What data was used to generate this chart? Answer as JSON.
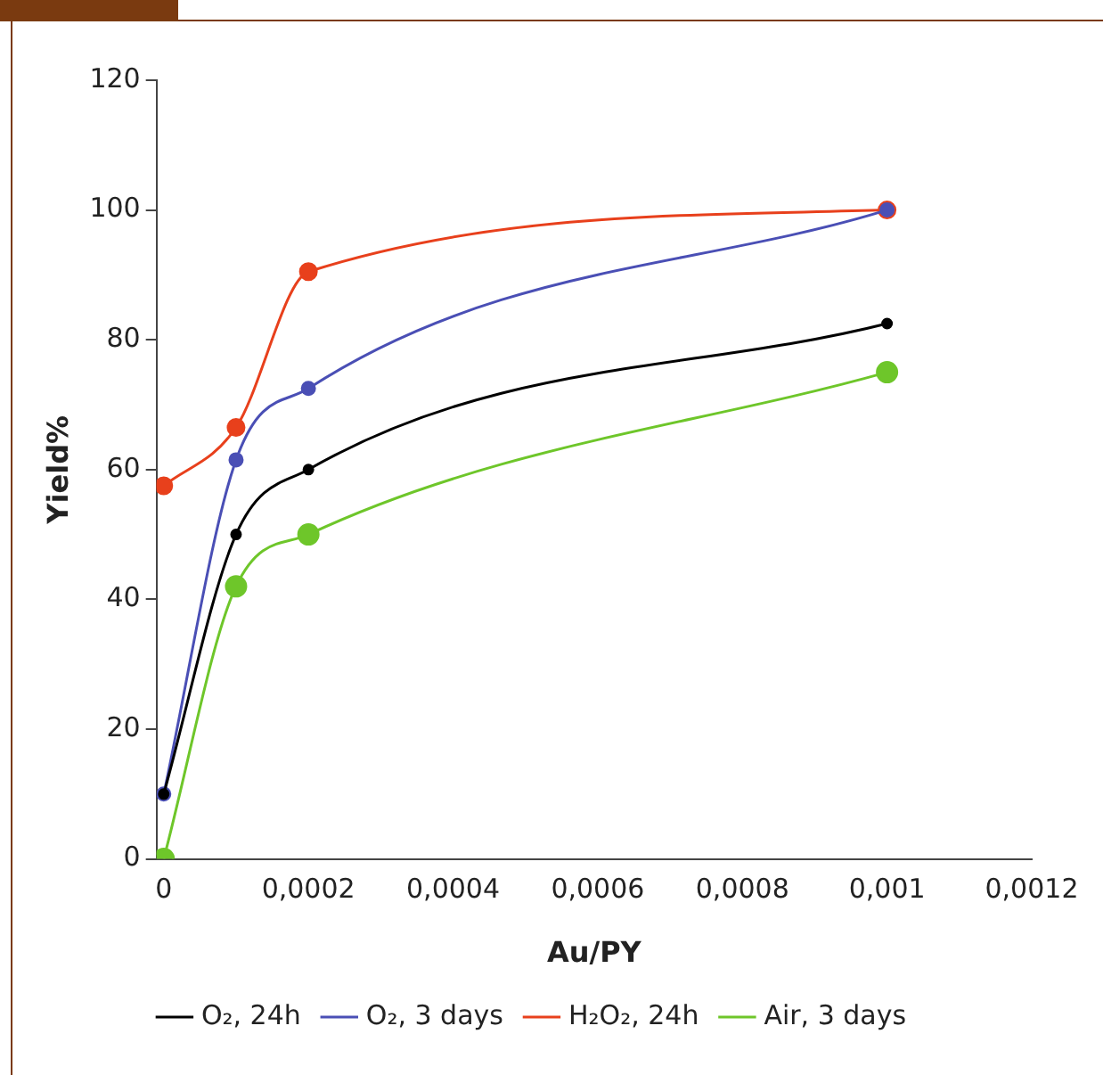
{
  "chart_data": {
    "type": "line",
    "xlabel": "Au/PY",
    "ylabel": "Yield%",
    "x": [
      0,
      0.0001,
      0.0002,
      0.001
    ],
    "series": [
      {
        "name": "O₂, 24h",
        "color": "#000000",
        "values": [
          10,
          50,
          60,
          82.5
        ]
      },
      {
        "name": "O₂, 3 days",
        "color": "#4a4fb5",
        "values": [
          10,
          61.5,
          72.5,
          100
        ]
      },
      {
        "name": "H₂O₂, 24h",
        "color": "#e8401c",
        "values": [
          57.5,
          66.5,
          90.5,
          100
        ]
      },
      {
        "name": "Air, 3 days",
        "color": "#6ec62a",
        "values": [
          0,
          42,
          50,
          75
        ]
      }
    ],
    "xlim": [
      -1e-05,
      0.0012
    ],
    "xticks": [
      {
        "value": 0,
        "label": "0"
      },
      {
        "value": 0.0002,
        "label": "0,0002"
      },
      {
        "value": 0.0004,
        "label": "0,0004"
      },
      {
        "value": 0.0006,
        "label": "0,0006"
      },
      {
        "value": 0.0008,
        "label": "0,0008"
      },
      {
        "value": 0.001,
        "label": "0,001"
      },
      {
        "value": 0.0012,
        "label": "0,0012"
      }
    ],
    "ylim": [
      0,
      120
    ],
    "yticks": [
      0,
      20,
      40,
      60,
      80,
      100,
      120
    ],
    "grid": false,
    "legend": "bottom",
    "marker": "circle",
    "line_style": "solid"
  }
}
